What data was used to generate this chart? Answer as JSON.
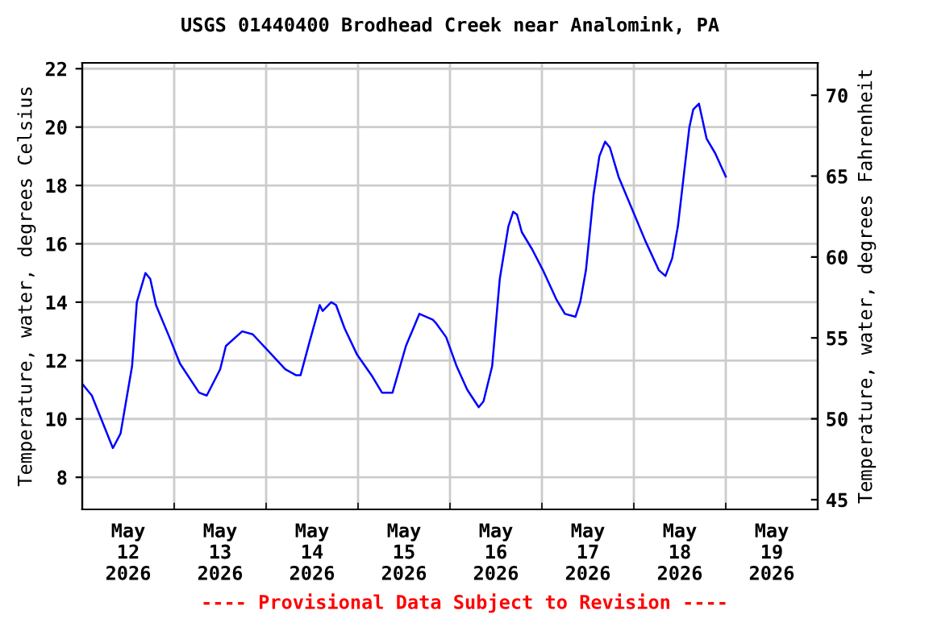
{
  "chart_data": {
    "type": "line",
    "title": "USGS 01440400 Brodhead Creek near Analomink, PA",
    "ylabel": "Temperature, water, degrees Celsius",
    "y2label": "Temperature, water, degrees Fahrenheit",
    "annotations": [
      "---- Provisional Data Subject to Revision ----"
    ],
    "series": [
      {
        "color": "#0000ff",
        "x": [
          "2026-05-12T00:00",
          "2026-05-12T02:30",
          "2026-05-12T08:00",
          "2026-05-12T10:00",
          "2026-05-12T13:00",
          "2026-05-12T14:15",
          "2026-05-12T16:30",
          "2026-05-12T17:45",
          "2026-05-12T19:15",
          "2026-05-12T22:45",
          "2026-05-13T01:30",
          "2026-05-13T06:30",
          "2026-05-13T08:30",
          "2026-05-13T12:00",
          "2026-05-13T13:30",
          "2026-05-13T17:45",
          "2026-05-13T20:30",
          "2026-05-14T00:45",
          "2026-05-14T05:00",
          "2026-05-14T07:45",
          "2026-05-14T09:00",
          "2026-05-14T11:15",
          "2026-05-14T14:00",
          "2026-05-14T14:45",
          "2026-05-14T17:00",
          "2026-05-14T18:15",
          "2026-05-14T20:30",
          "2026-05-14T23:45",
          "2026-05-15T03:30",
          "2026-05-15T06:15",
          "2026-05-15T09:00",
          "2026-05-15T12:30",
          "2026-05-15T16:00",
          "2026-05-15T19:30",
          "2026-05-15T20:15",
          "2026-05-15T23:00",
          "2026-05-16T01:45",
          "2026-05-16T04:30",
          "2026-05-16T07:30",
          "2026-05-16T08:45",
          "2026-05-16T11:00",
          "2026-05-16T13:00",
          "2026-05-16T15:15",
          "2026-05-16T16:30",
          "2026-05-16T17:30",
          "2026-05-16T18:45",
          "2026-05-16T21:30",
          "2026-05-17T00:15",
          "2026-05-17T03:45",
          "2026-05-17T06:00",
          "2026-05-17T08:45",
          "2026-05-17T10:00",
          "2026-05-17T11:30",
          "2026-05-17T13:30",
          "2026-05-17T15:00",
          "2026-05-17T16:30",
          "2026-05-17T17:45",
          "2026-05-17T20:00",
          "2026-05-17T23:30",
          "2026-05-18T03:00",
          "2026-05-18T06:30",
          "2026-05-18T08:15",
          "2026-05-18T10:00",
          "2026-05-18T11:30",
          "2026-05-18T13:00",
          "2026-05-18T14:30",
          "2026-05-18T15:30",
          "2026-05-18T17:00",
          "2026-05-18T19:00",
          "2026-05-18T21:15",
          "2026-05-19T00:00"
        ],
        "values": [
          11.2,
          10.8,
          9.0,
          9.5,
          11.8,
          14.0,
          15.0,
          14.8,
          13.9,
          12.8,
          11.9,
          10.9,
          10.8,
          11.7,
          12.5,
          13.0,
          12.9,
          12.3,
          11.7,
          11.5,
          11.5,
          12.6,
          13.9,
          13.7,
          14.0,
          13.9,
          13.1,
          12.2,
          11.5,
          10.9,
          10.9,
          12.5,
          13.6,
          13.4,
          13.3,
          12.8,
          11.8,
          11.0,
          10.4,
          10.6,
          11.8,
          14.8,
          16.6,
          17.1,
          17.0,
          16.4,
          15.8,
          15.1,
          14.1,
          13.6,
          13.5,
          14.0,
          15.1,
          17.7,
          19.0,
          19.5,
          19.3,
          18.3,
          17.2,
          16.1,
          15.1,
          14.9,
          15.5,
          16.6,
          18.3,
          20.0,
          20.6,
          20.8,
          19.6,
          19.1,
          18.3
        ]
      }
    ],
    "xlim": [
      "2026-05-12T00:00",
      "2026-05-20T00:00"
    ],
    "xticks": [
      {
        "value": "2026-05-12T12:00",
        "label": "May\n12\n2026"
      },
      {
        "value": "2026-05-13T12:00",
        "label": "May\n13\n2026"
      },
      {
        "value": "2026-05-14T12:00",
        "label": "May\n14\n2026"
      },
      {
        "value": "2026-05-15T12:00",
        "label": "May\n15\n2026"
      },
      {
        "value": "2026-05-16T12:00",
        "label": "May\n16\n2026"
      },
      {
        "value": "2026-05-17T12:00",
        "label": "May\n17\n2026"
      },
      {
        "value": "2026-05-18T12:00",
        "label": "May\n18\n2026"
      },
      {
        "value": "2026-05-19T12:00",
        "label": "May\n19\n2026"
      },
      {
        "value": "2026-05-13T00:00",
        "label": null
      },
      {
        "value": "2026-05-14T00:00",
        "label": null
      },
      {
        "value": "2026-05-15T00:00",
        "label": null
      },
      {
        "value": "2026-05-16T00:00",
        "label": null
      },
      {
        "value": "2026-05-17T00:00",
        "label": null
      },
      {
        "value": "2026-05-18T00:00",
        "label": null
      },
      {
        "value": "2026-05-19T00:00",
        "label": null
      }
    ],
    "ylim": [
      6.9,
      22.2
    ],
    "yticks": [
      8,
      10,
      12,
      14,
      16,
      18,
      20,
      22
    ],
    "y2lim": [
      44.4,
      72.0
    ],
    "y2ticks": [
      45,
      50,
      55,
      60,
      65,
      70
    ],
    "grid": true,
    "line_style": "solid",
    "marker": "none"
  }
}
